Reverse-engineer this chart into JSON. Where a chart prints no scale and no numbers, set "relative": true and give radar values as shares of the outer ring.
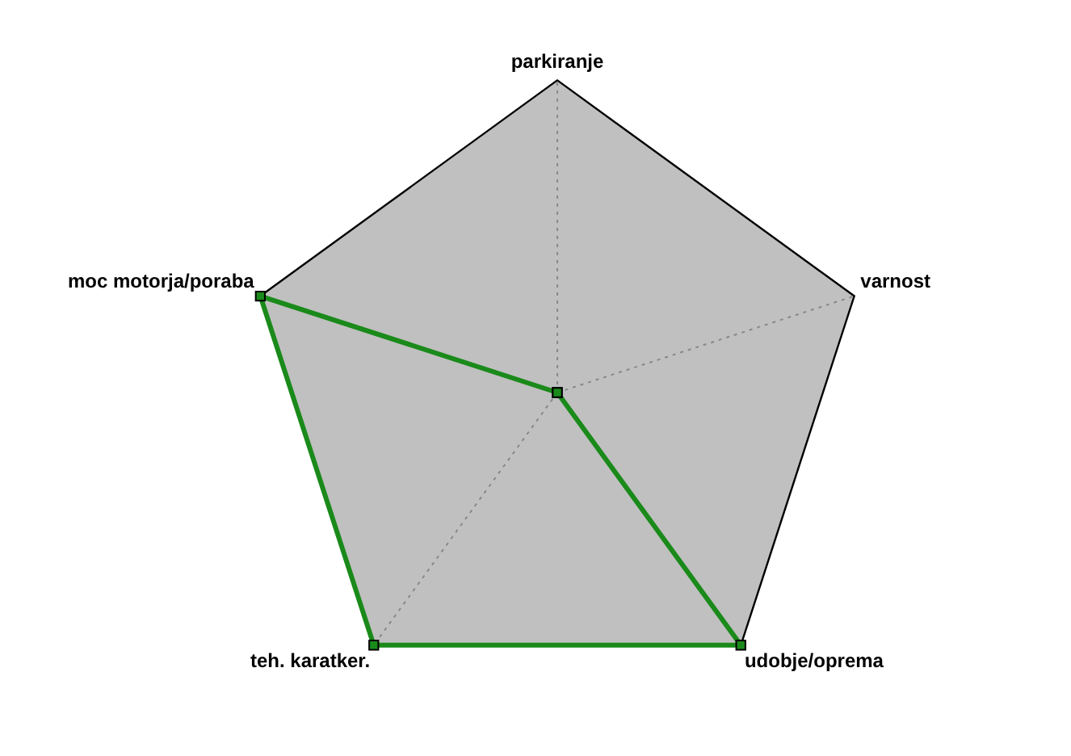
{
  "chart_data": {
    "type": "radar",
    "categories": [
      "parkiranje",
      "varnost",
      "udobje/oprema",
      "teh. karatker.",
      "moc motorja/poraba"
    ],
    "relative": true,
    "grid": true,
    "marker": "square",
    "legend": false,
    "series": [
      {
        "color": "#1a8a1a",
        "values": [
          0,
          0,
          1,
          1,
          1
        ]
      }
    ]
  }
}
